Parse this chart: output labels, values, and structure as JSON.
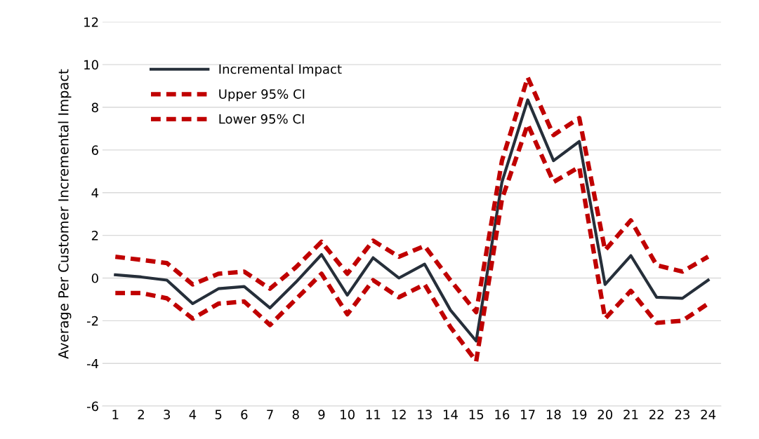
{
  "chart_data": {
    "type": "line",
    "ylabel": "Average Per Customer Incremental Impact",
    "categories": [
      "1",
      "2",
      "3",
      "4",
      "5",
      "6",
      "7",
      "8",
      "9",
      "10",
      "11",
      "12",
      "13",
      "14",
      "15",
      "16",
      "17",
      "18",
      "19",
      "20",
      "21",
      "22",
      "23",
      "24"
    ],
    "series": [
      {
        "name": "Incremental Impact",
        "color": "#262f3a",
        "line_style": "solid",
        "values": [
          0.15,
          0.05,
          -0.1,
          -1.2,
          -0.5,
          -0.4,
          -1.4,
          -0.2,
          1.1,
          -0.8,
          0.95,
          0.0,
          0.65,
          -1.5,
          -2.95,
          4.5,
          8.35,
          5.5,
          6.4,
          -0.3,
          1.05,
          -0.9,
          -0.95,
          -0.1
        ]
      },
      {
        "name": "Upper 95% CI",
        "color": "#c00000",
        "line_style": "dashed",
        "values": [
          1.0,
          0.85,
          0.7,
          -0.3,
          0.2,
          0.3,
          -0.5,
          0.5,
          1.7,
          0.2,
          1.75,
          1.0,
          1.5,
          -0.1,
          -1.6,
          5.5,
          9.4,
          6.7,
          7.5,
          1.3,
          2.7,
          0.6,
          0.3,
          1.0
        ]
      },
      {
        "name": "Lower 95% CI",
        "color": "#c00000",
        "line_style": "dashed",
        "values": [
          -0.7,
          -0.7,
          -0.95,
          -1.9,
          -1.2,
          -1.1,
          -2.2,
          -1.0,
          0.2,
          -1.7,
          -0.1,
          -0.9,
          -0.3,
          -2.3,
          -3.9,
          3.7,
          7.2,
          4.5,
          5.2,
          -1.9,
          -0.6,
          -2.1,
          -2.0,
          -1.2
        ]
      }
    ],
    "ylim": [
      -6,
      12
    ],
    "yticks": [
      -6,
      -4,
      -2,
      0,
      2,
      4,
      6,
      8,
      10,
      12
    ],
    "grid": "y",
    "legend": "top left",
    "marker": "none"
  }
}
